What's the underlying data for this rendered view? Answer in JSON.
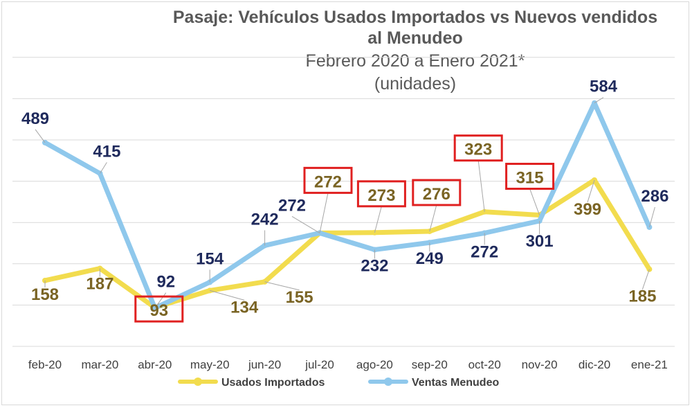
{
  "chart_data": {
    "type": "line",
    "title": "Pasaje: Vehículos Usados Importados  vs Nuevos vendidos",
    "title_line2": "al Menudeo",
    "subtitle": "Febrero 2020 a Enero 2021*",
    "unit_note": "(unidades)",
    "categories": [
      "feb-20",
      "mar-20",
      "abr-20",
      "may-20",
      "jun-20",
      "jul-20",
      "ago-20",
      "sep-20",
      "oct-20",
      "nov-20",
      "dic-20",
      "ene-21"
    ],
    "series": [
      {
        "name": "Usados Importados",
        "color": "#f2dc4e",
        "label_color": "#7a6424",
        "values": [
          158,
          187,
          93,
          134,
          155,
          272,
          273,
          276,
          323,
          315,
          399,
          185
        ],
        "highlighted": [
          false,
          false,
          true,
          false,
          false,
          true,
          true,
          true,
          true,
          true,
          false,
          false
        ]
      },
      {
        "name": "Ventas Menudeo",
        "color": "#8fc8ec",
        "label_color": "#1f2a5c",
        "values": [
          489,
          415,
          92,
          154,
          242,
          272,
          232,
          249,
          272,
          301,
          584,
          286
        ],
        "highlighted": [
          false,
          false,
          false,
          false,
          false,
          false,
          false,
          false,
          false,
          false,
          false,
          false
        ]
      }
    ],
    "ylim": [
      0,
      660
    ],
    "grid": true,
    "legend": "bottom",
    "highlight_color": "#e02020"
  }
}
